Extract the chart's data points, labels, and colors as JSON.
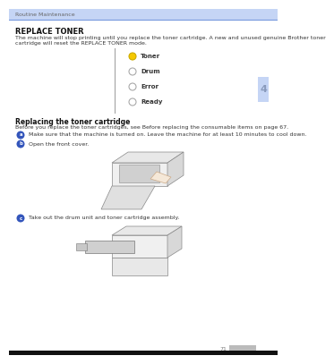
{
  "header_bg": "#c5d5f5",
  "header_line_color": "#7799dd",
  "page_bg": "#ffffff",
  "header_text": "Routine Maintenance",
  "header_text_color": "#666666",
  "header_fontsize": 4.5,
  "title": "REPLACE TONER",
  "title_fontsize": 6.0,
  "body_text1": "The machine will stop printing until you replace the toner cartridge. A new and unused genuine Brother toner",
  "body_text2": "cartridge will reset the REPLACE TONER mode.",
  "body_fontsize": 4.5,
  "body_text_color": "#333333",
  "led_items": [
    {
      "label": "Toner",
      "filled": true,
      "fill_color": "#f5c800",
      "outline": "#ccaa00"
    },
    {
      "label": "Drum",
      "filled": false,
      "fill_color": "#ffffff",
      "outline": "#aaaaaa"
    },
    {
      "label": "Error",
      "filled": false,
      "fill_color": "#ffffff",
      "outline": "#aaaaaa"
    },
    {
      "label": "Ready",
      "filled": false,
      "fill_color": "#ffffff",
      "outline": "#aaaaaa"
    }
  ],
  "led_text_bold": true,
  "led_fontsize": 5.0,
  "tab_bg": "#c5d5f5",
  "tab_text": "4",
  "tab_fontsize": 8,
  "tab_text_color": "#8899bb",
  "divider_color": "#999999",
  "section2_title": "Replacing the toner cartridge",
  "section2_fontsize": 5.5,
  "section2_text": "Before you replace the toner cartridges, see Before replacing the consumable items on page 67.",
  "section2_text_color": "#333333",
  "step_color": "#3355bb",
  "step_fontsize": 4.5,
  "steps": [
    "Make sure that the machine is turned on. Leave the machine for at least 10 minutes to cool down.",
    "Open the front cover.",
    "Take out the drum unit and toner cartridge assembly."
  ],
  "page_number": "71",
  "page_number_color": "#777777",
  "page_number_bg": "#bbbbbb",
  "footer_bg": "#111111"
}
